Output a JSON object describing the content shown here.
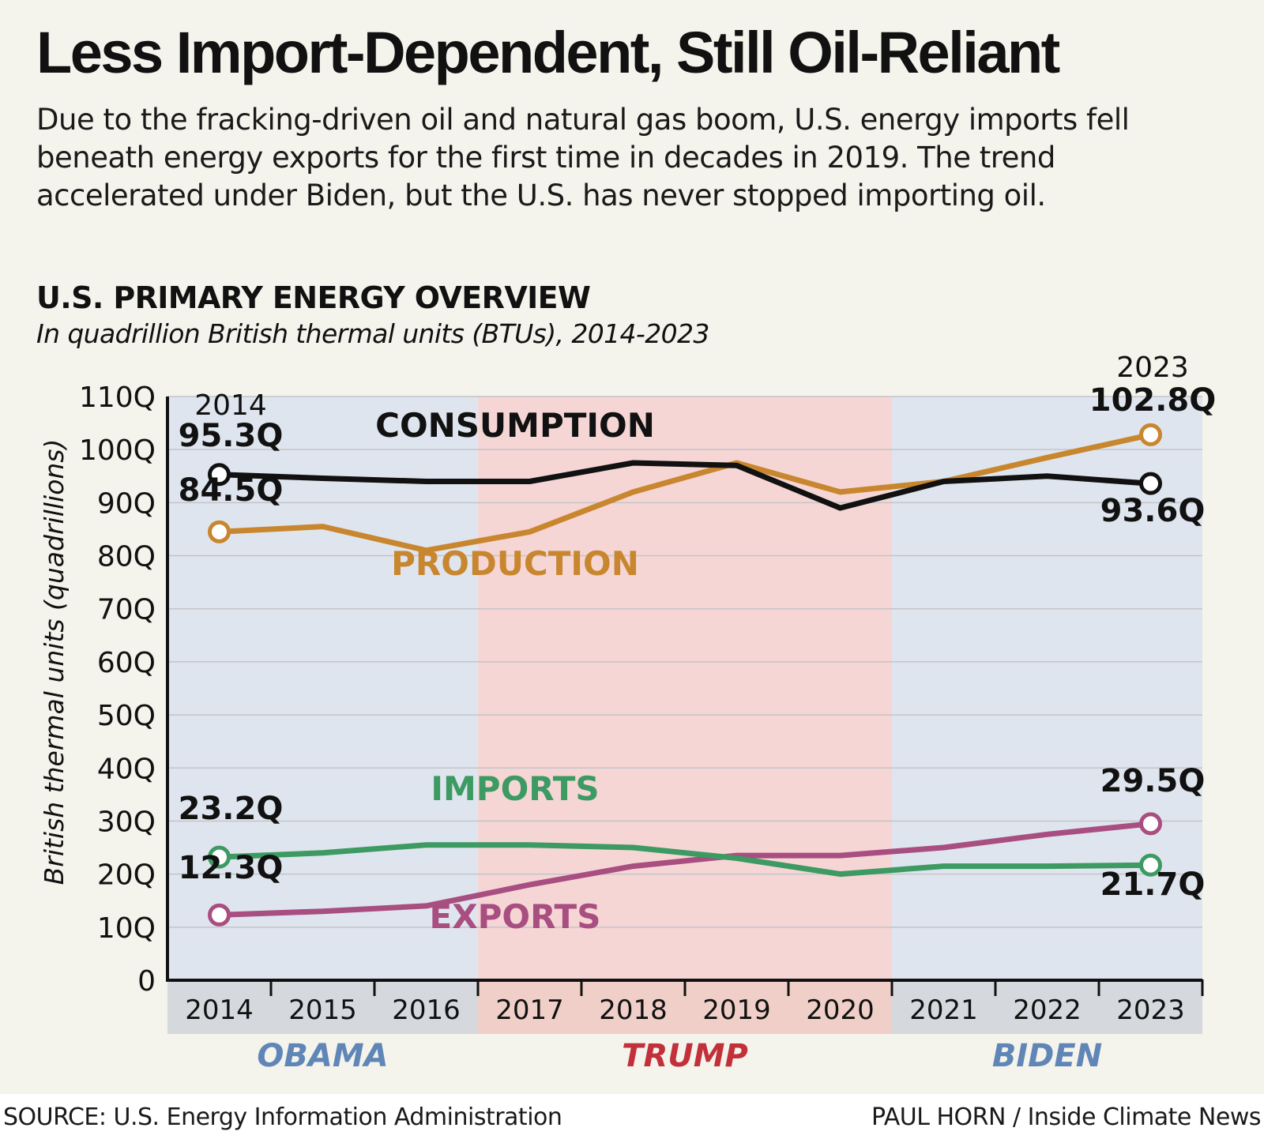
{
  "headline": "Less Import-Dependent, Still Oil-Reliant",
  "dek": "Due to the fracking-driven oil and natural gas boom, U.S. energy imports fell beneath energy exports for the first time in decades in 2019. The trend accelerated under Biden, but the U.S. has never stopped importing oil.",
  "source": "SOURCE: U.S. Energy Information Administration",
  "credit": "PAUL HORN / Inside Climate News",
  "colors": {
    "consumption": "#111111",
    "production": "#c8862e",
    "imports": "#3c9a62",
    "exports": "#a84e80",
    "obama_band": "#dfe5ee",
    "trump_band": "#f5d6d5",
    "obama_label": "#5f86b6",
    "trump_label": "#c2303a",
    "biden_label": "#5f86b6"
  },
  "chart_data": {
    "type": "line",
    "title": "U.S. PRIMARY ENERGY OVERVIEW",
    "subtitle": "In quadrillion British thermal units (BTUs), 2014-2023",
    "ylabel": "British thermal units (quadrillions)",
    "xlabel": "",
    "ylim": [
      0,
      110
    ],
    "grid": true,
    "y_ticks": [
      "0",
      "10Q",
      "20Q",
      "30Q",
      "40Q",
      "50Q",
      "60Q",
      "70Q",
      "80Q",
      "90Q",
      "100Q",
      "110Q"
    ],
    "categories": [
      "2014",
      "2015",
      "2016",
      "2017",
      "2018",
      "2019",
      "2020",
      "2021",
      "2022",
      "2023"
    ],
    "series": [
      {
        "name": "CONSUMPTION",
        "values": [
          95.3,
          94.6,
          94.0,
          94.0,
          97.5,
          97.0,
          89.0,
          94.0,
          95.0,
          93.6
        ]
      },
      {
        "name": "PRODUCTION",
        "values": [
          84.5,
          85.5,
          81.0,
          84.5,
          92.0,
          97.5,
          92.0,
          94.0,
          98.5,
          102.8
        ]
      },
      {
        "name": "IMPORTS",
        "values": [
          23.2,
          24.0,
          25.5,
          25.5,
          25.0,
          23.0,
          20.0,
          21.5,
          21.5,
          21.7
        ]
      },
      {
        "name": "EXPORTS",
        "values": [
          12.3,
          13.0,
          14.0,
          18.0,
          21.5,
          23.5,
          23.5,
          25.0,
          27.5,
          29.5
        ]
      }
    ],
    "annotations": {
      "start_year": "2014",
      "end_year": "2023",
      "consumption_start": "95.3Q",
      "production_start": "84.5Q",
      "imports_start": "23.2Q",
      "exports_start": "12.3Q",
      "consumption_end": "93.6Q",
      "production_end": "102.8Q",
      "imports_end": "21.7Q",
      "exports_end": "29.5Q"
    },
    "administrations": [
      {
        "name": "OBAMA",
        "years": [
          "2014",
          "2015",
          "2016"
        ]
      },
      {
        "name": "TRUMP",
        "years": [
          "2017",
          "2018",
          "2019",
          "2020"
        ]
      },
      {
        "name": "BIDEN",
        "years": [
          "2021",
          "2022",
          "2023"
        ]
      }
    ]
  }
}
